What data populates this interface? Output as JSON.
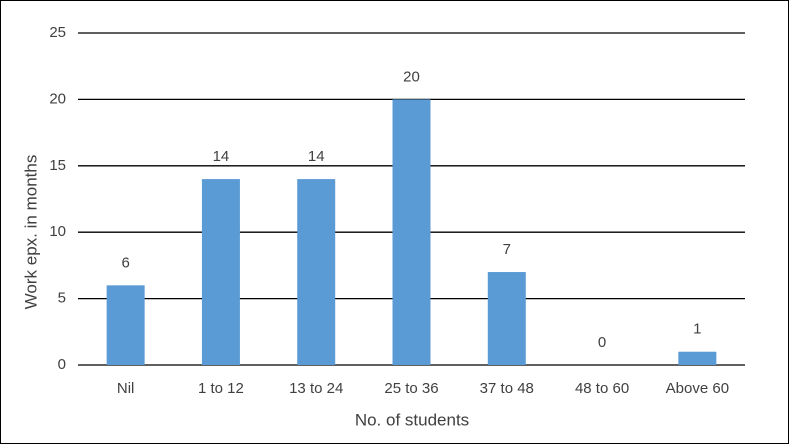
{
  "chart_data": {
    "type": "bar",
    "x_label": "No. of students",
    "y_label": "Work epx. in months",
    "categories": [
      "Nil",
      "1 to 12",
      "13 to 24",
      "25 to 36",
      "37 to 48",
      "48 to 60",
      "Above 60"
    ],
    "values": [
      6,
      14,
      14,
      20,
      7,
      0,
      1
    ],
    "color": "#5b9bd5",
    "ylim": [
      0,
      25
    ],
    "yticks": [
      0,
      5,
      10,
      15,
      20,
      25
    ],
    "grid": true,
    "data_labels": true
  }
}
